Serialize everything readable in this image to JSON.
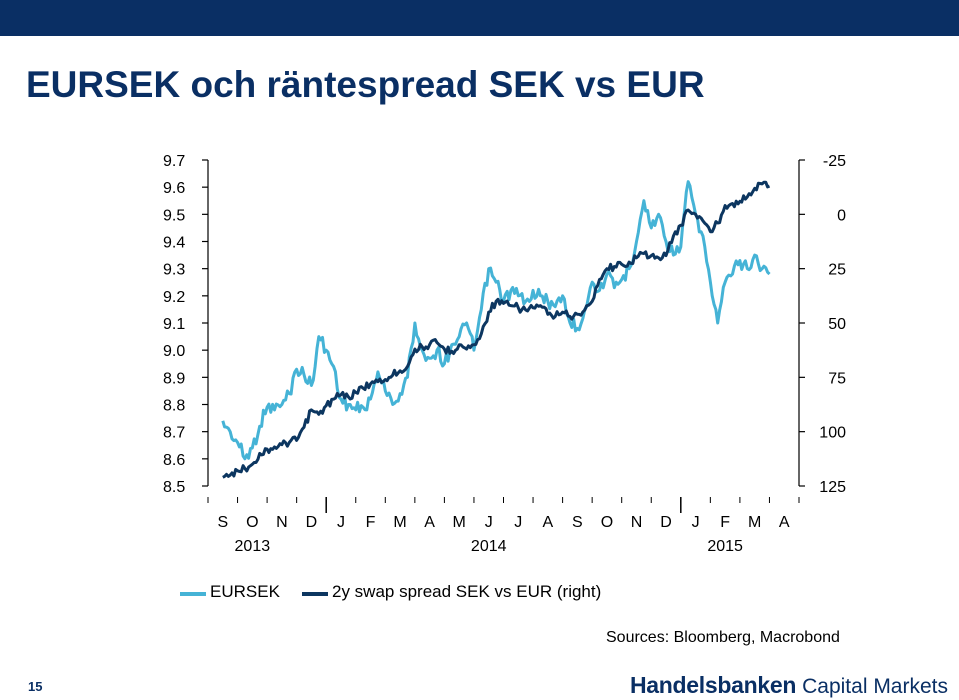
{
  "header": {
    "title": "EURSEK och räntespread SEK vs EUR"
  },
  "colors": {
    "top_bar": "#0a2f64",
    "eursek": "#45b3d6",
    "spread": "#0c3660",
    "title": "#0a2f64"
  },
  "chart_data": {
    "type": "line",
    "title": "",
    "x_month_labels": [
      "S",
      "O",
      "N",
      "D",
      "J",
      "F",
      "M",
      "A",
      "M",
      "J",
      "J",
      "A",
      "S",
      "O",
      "N",
      "D",
      "J",
      "F",
      "M",
      "A"
    ],
    "x_year_labels": [
      {
        "label": "2013",
        "month_index": 1.5
      },
      {
        "label": "2014",
        "month_index": 9.5
      },
      {
        "label": "2015",
        "month_index": 17.5
      }
    ],
    "x_range_months": [
      0,
      20
    ],
    "y_left": {
      "ylim": [
        8.5,
        9.7
      ],
      "ticks": [
        "9.7",
        "9.6",
        "9.5",
        "9.4",
        "9.3",
        "9.2",
        "9.1",
        "9.0",
        "8.9",
        "8.8",
        "8.7",
        "8.6",
        "8.5"
      ]
    },
    "y_right": {
      "ylim": [
        125,
        -25
      ],
      "inverted": true,
      "ticks": [
        "-25",
        "0",
        "25",
        "50",
        "75",
        "100",
        "125"
      ]
    },
    "series": [
      {
        "name": "EURSEK",
        "axis": "left",
        "color": "#45b3d6",
        "points": [
          [
            0.0,
            8.74
          ],
          [
            0.25,
            8.7
          ],
          [
            0.5,
            8.66
          ],
          [
            0.75,
            8.6
          ],
          [
            1.0,
            8.64
          ],
          [
            1.25,
            8.72
          ],
          [
            1.5,
            8.79
          ],
          [
            1.75,
            8.78
          ],
          [
            2.0,
            8.8
          ],
          [
            2.25,
            8.84
          ],
          [
            2.5,
            8.93
          ],
          [
            2.75,
            8.91
          ],
          [
            3.0,
            8.87
          ],
          [
            3.25,
            9.05
          ],
          [
            3.5,
            9.0
          ],
          [
            3.75,
            8.94
          ],
          [
            4.0,
            8.82
          ],
          [
            4.25,
            8.8
          ],
          [
            4.5,
            8.78
          ],
          [
            4.75,
            8.79
          ],
          [
            5.0,
            8.82
          ],
          [
            5.25,
            8.92
          ],
          [
            5.5,
            8.85
          ],
          [
            5.75,
            8.8
          ],
          [
            6.0,
            8.84
          ],
          [
            6.25,
            8.9
          ],
          [
            6.5,
            9.1
          ],
          [
            6.75,
            9.0
          ],
          [
            7.0,
            8.97
          ],
          [
            7.25,
            9.0
          ],
          [
            7.5,
            8.95
          ],
          [
            7.75,
            9.02
          ],
          [
            8.0,
            9.05
          ],
          [
            8.25,
            9.1
          ],
          [
            8.5,
            9.0
          ],
          [
            8.75,
            9.15
          ],
          [
            9.0,
            9.3
          ],
          [
            9.25,
            9.25
          ],
          [
            9.5,
            9.18
          ],
          [
            9.75,
            9.22
          ],
          [
            10.0,
            9.2
          ],
          [
            10.25,
            9.18
          ],
          [
            10.5,
            9.22
          ],
          [
            10.75,
            9.2
          ],
          [
            11.0,
            9.18
          ],
          [
            11.25,
            9.16
          ],
          [
            11.5,
            9.2
          ],
          [
            11.75,
            9.1
          ],
          [
            12.0,
            9.08
          ],
          [
            12.25,
            9.15
          ],
          [
            12.5,
            9.25
          ],
          [
            12.75,
            9.22
          ],
          [
            13.0,
            9.28
          ],
          [
            13.25,
            9.23
          ],
          [
            13.5,
            9.26
          ],
          [
            13.75,
            9.3
          ],
          [
            14.0,
            9.4
          ],
          [
            14.25,
            9.55
          ],
          [
            14.5,
            9.45
          ],
          [
            14.75,
            9.5
          ],
          [
            15.0,
            9.4
          ],
          [
            15.25,
            9.35
          ],
          [
            15.5,
            9.38
          ],
          [
            15.75,
            9.62
          ],
          [
            16.0,
            9.5
          ],
          [
            16.25,
            9.42
          ],
          [
            16.5,
            9.25
          ],
          [
            16.75,
            9.1
          ],
          [
            17.0,
            9.25
          ],
          [
            17.25,
            9.28
          ],
          [
            17.5,
            9.33
          ],
          [
            17.75,
            9.3
          ],
          [
            18.0,
            9.35
          ],
          [
            18.25,
            9.3
          ],
          [
            18.5,
            9.28
          ]
        ]
      },
      {
        "name": "2y swap spread SEK vs EUR (right)",
        "axis": "right",
        "color": "#0c3660",
        "points": [
          [
            0.0,
            121
          ],
          [
            0.25,
            120
          ],
          [
            0.5,
            118
          ],
          [
            0.75,
            117
          ],
          [
            1.0,
            115
          ],
          [
            1.25,
            110
          ],
          [
            1.5,
            108
          ],
          [
            1.75,
            107
          ],
          [
            2.0,
            106
          ],
          [
            2.25,
            105
          ],
          [
            2.5,
            104
          ],
          [
            2.75,
            98
          ],
          [
            3.0,
            90
          ],
          [
            3.25,
            92
          ],
          [
            3.5,
            88
          ],
          [
            3.75,
            85
          ],
          [
            4.0,
            83
          ],
          [
            4.25,
            84
          ],
          [
            4.5,
            82
          ],
          [
            4.75,
            80
          ],
          [
            5.0,
            78
          ],
          [
            5.25,
            77
          ],
          [
            5.5,
            76
          ],
          [
            5.75,
            74
          ],
          [
            6.0,
            72
          ],
          [
            6.25,
            70
          ],
          [
            6.5,
            62
          ],
          [
            6.75,
            61
          ],
          [
            7.0,
            60
          ],
          [
            7.25,
            59
          ],
          [
            7.5,
            62
          ],
          [
            7.75,
            63
          ],
          [
            8.0,
            60
          ],
          [
            8.25,
            62
          ],
          [
            8.5,
            60
          ],
          [
            8.75,
            55
          ],
          [
            9.0,
            45
          ],
          [
            9.25,
            40
          ],
          [
            9.5,
            41
          ],
          [
            9.75,
            42
          ],
          [
            10.0,
            43
          ],
          [
            10.25,
            44
          ],
          [
            10.5,
            43
          ],
          [
            10.75,
            42
          ],
          [
            11.0,
            46
          ],
          [
            11.25,
            47
          ],
          [
            11.5,
            45
          ],
          [
            11.75,
            47
          ],
          [
            12.0,
            46
          ],
          [
            12.25,
            44
          ],
          [
            12.5,
            40
          ],
          [
            12.75,
            30
          ],
          [
            13.0,
            25
          ],
          [
            13.25,
            24
          ],
          [
            13.5,
            23
          ],
          [
            13.75,
            22
          ],
          [
            14.0,
            20
          ],
          [
            14.25,
            18
          ],
          [
            14.5,
            19
          ],
          [
            14.75,
            20
          ],
          [
            15.0,
            19
          ],
          [
            15.25,
            10
          ],
          [
            15.5,
            5
          ],
          [
            15.75,
            -2
          ],
          [
            16.0,
            0
          ],
          [
            16.25,
            3
          ],
          [
            16.5,
            8
          ],
          [
            16.75,
            4
          ],
          [
            17.0,
            -4
          ],
          [
            17.25,
            -5
          ],
          [
            17.5,
            -6
          ],
          [
            17.75,
            -8
          ],
          [
            18.0,
            -12
          ],
          [
            18.25,
            -14
          ],
          [
            18.5,
            -13
          ]
        ]
      }
    ]
  },
  "legend": {
    "items": [
      "EURSEK",
      "2y swap spread SEK vs EUR (right)"
    ]
  },
  "footer": {
    "sources": "Sources: Bloomberg, Macrobond",
    "page_number": "15",
    "brand_main": "Handelsbanken",
    "brand_sub": "Capital Markets"
  }
}
